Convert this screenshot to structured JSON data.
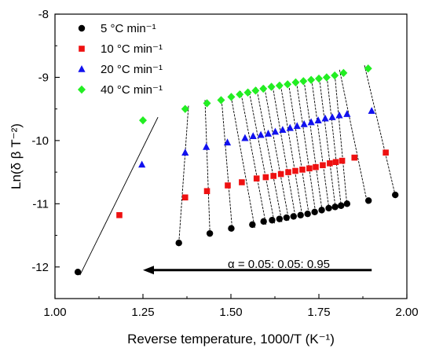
{
  "chart_data": {
    "type": "scatter",
    "xlabel": "Reverse temperature, 1000/T (K⁻¹)",
    "ylabel": "Ln(δ β T⁻²)",
    "xlim": [
      1.0,
      2.0
    ],
    "ylim": [
      -12.5,
      -8.0
    ],
    "xticks": [
      "1.00",
      "1.25",
      "1.50",
      "1.75",
      "2.00"
    ],
    "yticks": [
      "-8",
      "-9",
      "-10",
      "-11",
      "-12"
    ],
    "legend_position": "top-left",
    "grid": false,
    "annotation": "α = 0.05: 0.05: 0.95",
    "annotation_arrow": {
      "from": [
        1.9,
        -12.05
      ],
      "to": [
        1.25,
        -12.05
      ]
    },
    "series": [
      {
        "name": "5 °C min⁻¹",
        "marker": "circle",
        "color": "#000000",
        "x": [
          1.065,
          1.352,
          1.44,
          1.501,
          1.561,
          1.593,
          1.617,
          1.638,
          1.658,
          1.678,
          1.698,
          1.718,
          1.738,
          1.758,
          1.778,
          1.796,
          1.813,
          1.83,
          1.891,
          1.967
        ],
        "y": [
          -12.08,
          -11.62,
          -11.47,
          -11.39,
          -11.33,
          -11.28,
          -11.26,
          -11.24,
          -11.22,
          -11.2,
          -11.18,
          -11.16,
          -11.13,
          -11.1,
          -11.07,
          -11.05,
          -11.03,
          -11.0,
          -10.95,
          -10.86
        ]
      },
      {
        "name": "10 °C min⁻¹",
        "marker": "square",
        "color": "#ee1111",
        "x": [
          1.183,
          1.37,
          1.432,
          1.491,
          1.531,
          1.573,
          1.599,
          1.621,
          1.642,
          1.663,
          1.683,
          1.703,
          1.723,
          1.741,
          1.761,
          1.781,
          1.798,
          1.816,
          1.851,
          1.94
        ],
        "y": [
          -11.18,
          -10.9,
          -10.8,
          -10.71,
          -10.66,
          -10.6,
          -10.58,
          -10.56,
          -10.53,
          -10.5,
          -10.48,
          -10.46,
          -10.44,
          -10.42,
          -10.39,
          -10.36,
          -10.34,
          -10.32,
          -10.27,
          -10.19
        ]
      },
      {
        "name": "20 °C min⁻¹",
        "marker": "triangle",
        "color": "#1111ee",
        "x": [
          1.247,
          1.37,
          1.43,
          1.49,
          1.54,
          1.563,
          1.585,
          1.606,
          1.626,
          1.647,
          1.668,
          1.688,
          1.708,
          1.728,
          1.748,
          1.768,
          1.788,
          1.808,
          1.83,
          1.9
        ],
        "y": [
          -10.38,
          -10.19,
          -10.1,
          -10.03,
          -9.96,
          -9.93,
          -9.91,
          -9.89,
          -9.86,
          -9.83,
          -9.8,
          -9.77,
          -9.74,
          -9.71,
          -9.68,
          -9.65,
          -9.63,
          -9.6,
          -9.58,
          -9.53
        ]
      },
      {
        "name": "40 °C min⁻¹",
        "marker": "diamond",
        "color": "#22ee22",
        "x": [
          1.25,
          1.37,
          1.432,
          1.472,
          1.501,
          1.525,
          1.548,
          1.57,
          1.592,
          1.615,
          1.638,
          1.661,
          1.684,
          1.706,
          1.728,
          1.75,
          1.772,
          1.795,
          1.82,
          1.89
        ],
        "y": [
          -9.68,
          -9.5,
          -9.41,
          -9.36,
          -9.31,
          -9.27,
          -9.24,
          -9.21,
          -9.18,
          -9.15,
          -9.13,
          -9.11,
          -9.08,
          -9.06,
          -9.04,
          -9.02,
          -9.0,
          -8.97,
          -8.93,
          -8.86
        ]
      }
    ]
  }
}
